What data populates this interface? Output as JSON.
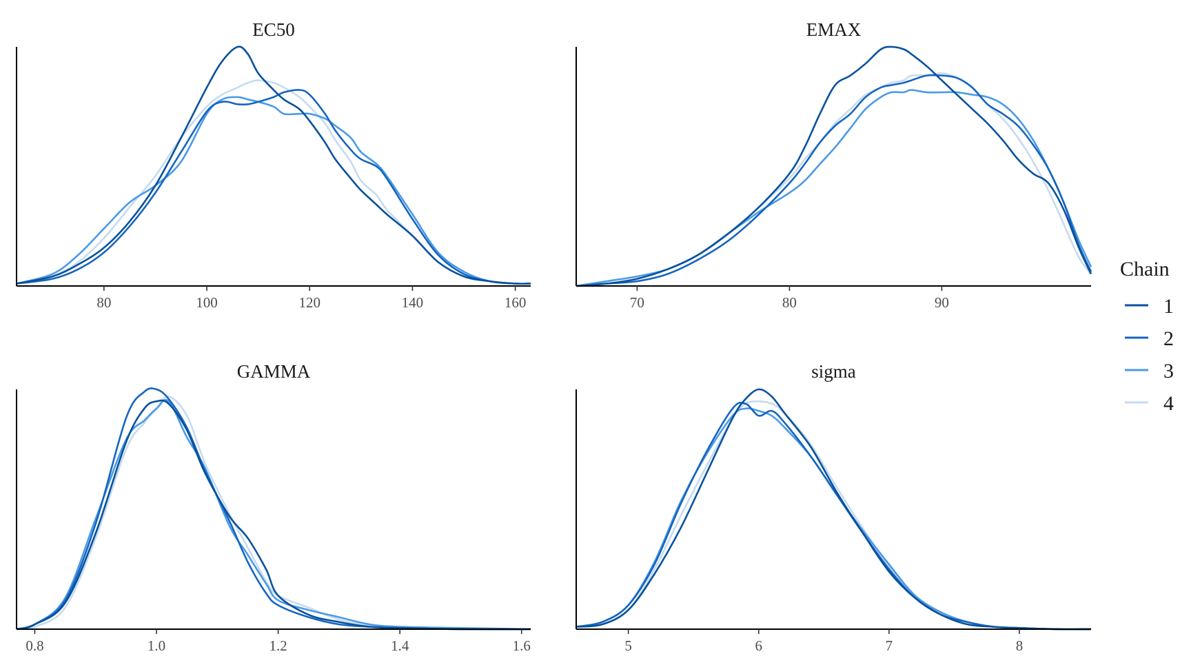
{
  "legend": {
    "title": "Chain",
    "entries": [
      {
        "label": "1",
        "color": "#08519c"
      },
      {
        "label": "2",
        "color": "#1565c0"
      },
      {
        "label": "3",
        "color": "#4a9ae8"
      },
      {
        "label": "4",
        "color": "#c6dbef"
      }
    ]
  },
  "chart_data": [
    {
      "type": "line",
      "title": "EC50",
      "xlim": [
        63,
        163
      ],
      "ylim": [
        0,
        1.0
      ],
      "xticks": [
        "80",
        "100",
        "120",
        "140",
        "160"
      ],
      "xtick_values": [
        80,
        100,
        120,
        140,
        160
      ],
      "x": [
        63,
        70,
        75,
        80,
        85,
        90,
        95,
        100,
        103,
        106,
        108,
        110,
        113,
        115,
        118,
        120,
        123,
        125,
        128,
        130,
        133,
        135,
        140,
        145,
        150,
        155,
        160,
        163
      ],
      "series": [
        {
          "name": "1",
          "values": [
            0.01,
            0.04,
            0.09,
            0.16,
            0.27,
            0.42,
            0.62,
            0.83,
            0.94,
            1.0,
            0.97,
            0.89,
            0.82,
            0.78,
            0.74,
            0.69,
            0.6,
            0.53,
            0.45,
            0.4,
            0.34,
            0.3,
            0.21,
            0.1,
            0.04,
            0.02,
            0.01,
            0.01
          ]
        },
        {
          "name": "2",
          "values": [
            0.01,
            0.03,
            0.07,
            0.14,
            0.25,
            0.39,
            0.56,
            0.73,
            0.77,
            0.76,
            0.76,
            0.77,
            0.79,
            0.81,
            0.82,
            0.8,
            0.72,
            0.65,
            0.57,
            0.53,
            0.5,
            0.45,
            0.28,
            0.13,
            0.05,
            0.02,
            0.01,
            0.01
          ]
        },
        {
          "name": "3",
          "values": [
            0.01,
            0.05,
            0.13,
            0.24,
            0.35,
            0.42,
            0.52,
            0.72,
            0.78,
            0.79,
            0.78,
            0.77,
            0.75,
            0.72,
            0.72,
            0.72,
            0.7,
            0.67,
            0.62,
            0.56,
            0.51,
            0.46,
            0.3,
            0.14,
            0.06,
            0.02,
            0.01,
            0.01
          ]
        },
        {
          "name": "4",
          "values": [
            0.01,
            0.04,
            0.1,
            0.2,
            0.33,
            0.46,
            0.62,
            0.75,
            0.8,
            0.83,
            0.85,
            0.86,
            0.85,
            0.83,
            0.79,
            0.75,
            0.68,
            0.61,
            0.52,
            0.44,
            0.38,
            0.32,
            0.21,
            0.1,
            0.04,
            0.02,
            0.01,
            0.01
          ]
        }
      ]
    },
    {
      "type": "line",
      "title": "EMAX",
      "xlim": [
        66,
        99.8
      ],
      "ylim": [
        0,
        1.0
      ],
      "xticks": [
        "70",
        "80",
        "90"
      ],
      "xtick_values": [
        70,
        80,
        90
      ],
      "x": [
        66,
        68,
        70,
        72,
        74,
        76,
        78,
        80,
        81,
        82,
        83,
        84,
        85,
        86,
        86.7,
        87.5,
        88,
        89,
        90,
        91,
        92,
        93,
        94,
        95,
        96,
        97,
        98,
        99,
        99.8
      ],
      "series": [
        {
          "name": "1",
          "values": [
            0.0,
            0.01,
            0.03,
            0.07,
            0.13,
            0.22,
            0.33,
            0.47,
            0.58,
            0.72,
            0.84,
            0.88,
            0.93,
            0.99,
            1.0,
            0.99,
            0.97,
            0.92,
            0.86,
            0.8,
            0.74,
            0.68,
            0.61,
            0.53,
            0.47,
            0.43,
            0.32,
            0.16,
            0.05
          ]
        },
        {
          "name": "2",
          "values": [
            0.0,
            0.01,
            0.02,
            0.05,
            0.11,
            0.19,
            0.3,
            0.43,
            0.51,
            0.6,
            0.67,
            0.72,
            0.79,
            0.83,
            0.84,
            0.85,
            0.86,
            0.88,
            0.88,
            0.87,
            0.83,
            0.76,
            0.72,
            0.67,
            0.59,
            0.49,
            0.35,
            0.17,
            0.06
          ]
        },
        {
          "name": "3",
          "values": [
            0.0,
            0.02,
            0.04,
            0.07,
            0.13,
            0.22,
            0.31,
            0.39,
            0.44,
            0.51,
            0.58,
            0.66,
            0.74,
            0.79,
            0.81,
            0.81,
            0.82,
            0.81,
            0.81,
            0.81,
            0.8,
            0.79,
            0.76,
            0.7,
            0.61,
            0.49,
            0.35,
            0.19,
            0.08
          ]
        },
        {
          "name": "4",
          "values": [
            0.0,
            0.02,
            0.04,
            0.07,
            0.13,
            0.22,
            0.33,
            0.45,
            0.53,
            0.6,
            0.68,
            0.74,
            0.8,
            0.83,
            0.85,
            0.86,
            0.88,
            0.88,
            0.89,
            0.87,
            0.83,
            0.76,
            0.7,
            0.62,
            0.52,
            0.4,
            0.26,
            0.12,
            0.05
          ]
        }
      ]
    },
    {
      "type": "line",
      "title": "GAMMA",
      "xlim": [
        0.77,
        1.615
      ],
      "ylim": [
        0,
        1.0
      ],
      "xticks": [
        "0.8",
        "1.0",
        "1.2",
        "1.4",
        "1.6"
      ],
      "xtick_values": [
        0.8,
        1.0,
        1.2,
        1.4,
        1.6
      ],
      "x": [
        0.77,
        0.8,
        0.85,
        0.9,
        0.95,
        0.98,
        1.0,
        1.02,
        1.05,
        1.08,
        1.12,
        1.15,
        1.18,
        1.2,
        1.25,
        1.3,
        1.35,
        1.4,
        1.5,
        1.615
      ],
      "series": [
        {
          "name": "1",
          "values": [
            0.0,
            0.02,
            0.11,
            0.4,
            0.78,
            0.92,
            0.95,
            0.94,
            0.83,
            0.65,
            0.47,
            0.38,
            0.25,
            0.14,
            0.06,
            0.03,
            0.01,
            0.005,
            0.0,
            0.0
          ]
        },
        {
          "name": "2",
          "values": [
            0.0,
            0.02,
            0.12,
            0.44,
            0.88,
            0.99,
            1.0,
            0.96,
            0.84,
            0.66,
            0.45,
            0.28,
            0.15,
            0.1,
            0.05,
            0.02,
            0.01,
            0.005,
            0.0,
            0.0
          ]
        },
        {
          "name": "3",
          "values": [
            0.0,
            0.02,
            0.13,
            0.46,
            0.79,
            0.87,
            0.92,
            0.95,
            0.8,
            0.67,
            0.43,
            0.31,
            0.19,
            0.12,
            0.08,
            0.05,
            0.02,
            0.01,
            0.005,
            0.0
          ]
        },
        {
          "name": "4",
          "values": [
            0.0,
            0.01,
            0.09,
            0.38,
            0.75,
            0.86,
            0.92,
            0.97,
            0.89,
            0.69,
            0.48,
            0.34,
            0.2,
            0.14,
            0.09,
            0.04,
            0.015,
            0.005,
            0.0,
            0.0
          ]
        }
      ]
    },
    {
      "type": "line",
      "title": "sigma",
      "xlim": [
        4.6,
        8.55
      ],
      "ylim": [
        0,
        1.0
      ],
      "xticks": [
        "5",
        "6",
        "7",
        "8"
      ],
      "xtick_values": [
        5,
        6,
        7,
        8
      ],
      "x": [
        4.6,
        4.8,
        5.0,
        5.2,
        5.4,
        5.6,
        5.8,
        5.9,
        6.0,
        6.1,
        6.2,
        6.4,
        6.6,
        6.8,
        7.0,
        7.2,
        7.4,
        7.6,
        7.8,
        8.0,
        8.3,
        8.55
      ],
      "series": [
        {
          "name": "1",
          "values": [
            0.01,
            0.02,
            0.08,
            0.23,
            0.42,
            0.65,
            0.88,
            0.96,
            1.0,
            0.97,
            0.9,
            0.76,
            0.57,
            0.4,
            0.24,
            0.13,
            0.06,
            0.02,
            0.01,
            0.005,
            0.0,
            0.0
          ]
        },
        {
          "name": "2",
          "values": [
            0.01,
            0.03,
            0.1,
            0.27,
            0.52,
            0.74,
            0.92,
            0.94,
            0.89,
            0.91,
            0.86,
            0.72,
            0.56,
            0.4,
            0.25,
            0.13,
            0.06,
            0.03,
            0.01,
            0.005,
            0.0,
            0.0
          ]
        },
        {
          "name": "3",
          "values": [
            0.01,
            0.03,
            0.1,
            0.28,
            0.53,
            0.73,
            0.89,
            0.92,
            0.91,
            0.89,
            0.84,
            0.72,
            0.56,
            0.41,
            0.27,
            0.14,
            0.07,
            0.03,
            0.01,
            0.005,
            0.0,
            0.0
          ]
        },
        {
          "name": "4",
          "values": [
            0.01,
            0.02,
            0.08,
            0.25,
            0.47,
            0.68,
            0.88,
            0.94,
            0.95,
            0.94,
            0.9,
            0.77,
            0.59,
            0.42,
            0.26,
            0.14,
            0.07,
            0.03,
            0.01,
            0.005,
            0.0,
            0.0
          ]
        }
      ]
    }
  ]
}
